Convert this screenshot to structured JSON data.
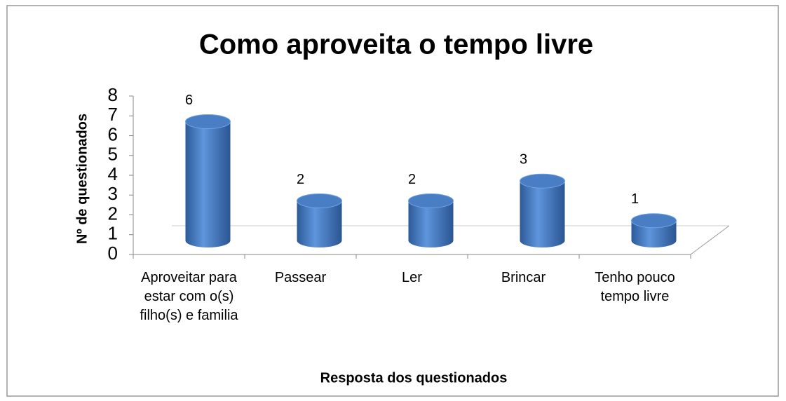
{
  "chart_data": {
    "type": "bar3d",
    "title": "Como aproveita o tempo livre",
    "categories": [
      "Aproveitar para estar com o(s) filho(s) e familia",
      "Passear",
      "Ler",
      "Brincar",
      "Tenho pouco tempo livre"
    ],
    "values": [
      6,
      2,
      2,
      3,
      1
    ],
    "color": "#4a7ec4",
    "ylim": [
      0,
      8
    ],
    "yticks": [
      0,
      1,
      2,
      3,
      4,
      5,
      6,
      7,
      8
    ],
    "y_label": "Nº de questionados",
    "x_label": "Resposta dos questionados",
    "grid": false
  }
}
